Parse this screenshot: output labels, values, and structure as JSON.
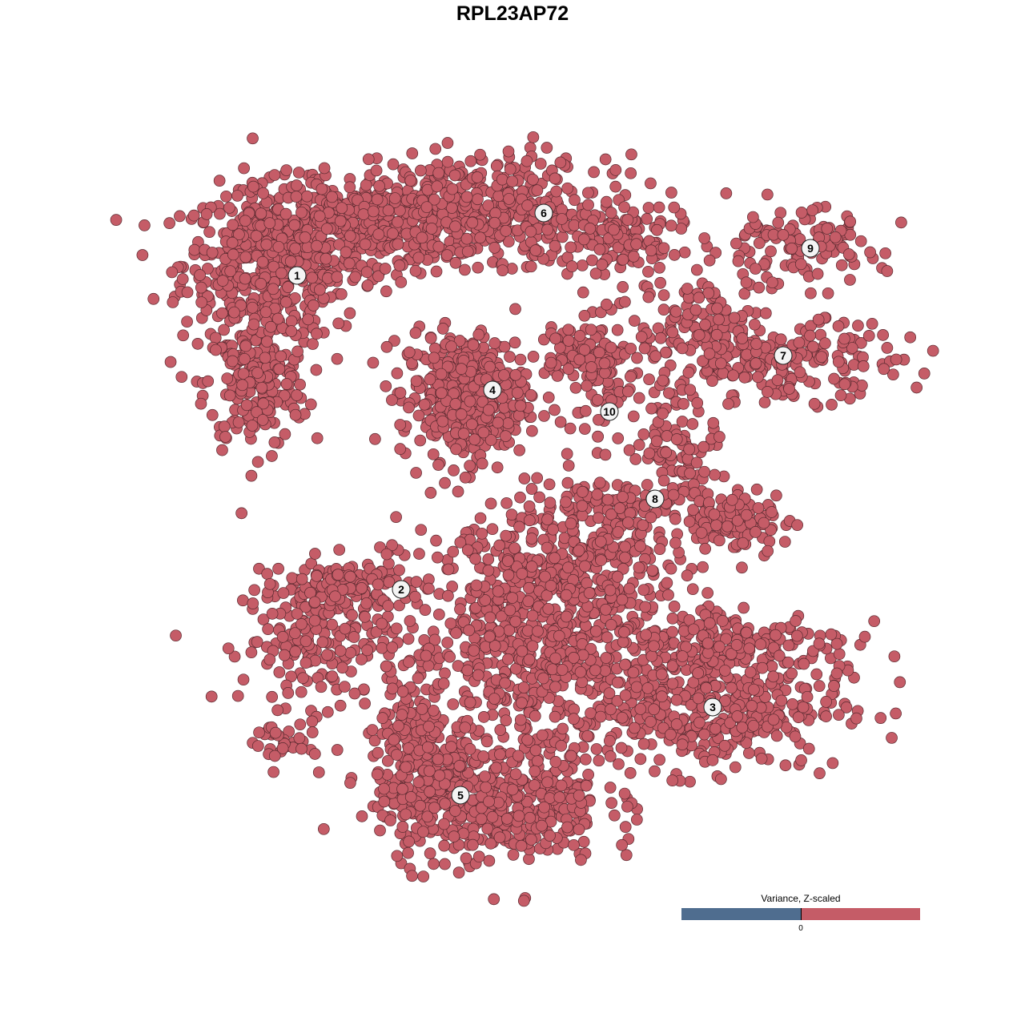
{
  "chart_data": {
    "type": "scatter",
    "title": "RPL23AP72",
    "xlabel": "",
    "ylabel": "",
    "xlim": [
      -44,
      50
    ],
    "ylim": [
      -46,
      46
    ],
    "axes_visible": false,
    "grid": false,
    "point_color": "#c55c67",
    "point_stroke": "#5a2a30",
    "clusters": [
      {
        "label": "1",
        "label_at": [
          -26.9,
          29.6
        ],
        "blobs": [
          [
            -30,
            31,
            7,
            6,
            500
          ],
          [
            -32,
            16,
            4,
            5,
            200
          ],
          [
            -19,
            36,
            8,
            4,
            300
          ]
        ]
      },
      {
        "label": "2",
        "label_at": [
          -13.9,
          -9.6
        ],
        "blobs": [
          [
            -24,
            -16,
            6,
            5,
            200
          ],
          [
            -20,
            -9,
            5,
            2,
            100
          ],
          [
            -29,
            -29,
            3,
            2,
            30
          ]
        ]
      },
      {
        "label": "3",
        "label_at": [
          25,
          -24.3
        ],
        "blobs": [
          [
            25,
            -24,
            10,
            5,
            400
          ],
          [
            28,
            -16,
            9,
            3,
            150
          ]
        ]
      },
      {
        "label": "4",
        "label_at": [
          -2.5,
          15.3
        ],
        "blobs": [
          [
            -6,
            14.5,
            5,
            5,
            400
          ]
        ]
      },
      {
        "label": "5",
        "label_at": [
          -6.5,
          -35.3
        ],
        "blobs": [
          [
            -3,
            -36,
            9,
            5,
            500
          ],
          [
            -12,
            -29,
            3,
            5,
            150
          ]
        ]
      },
      {
        "label": "6",
        "label_at": [
          3.9,
          37.4
        ],
        "blobs": [
          [
            -4,
            38,
            10,
            4,
            400
          ],
          [
            12,
            34,
            6,
            4,
            150
          ]
        ]
      },
      {
        "label": "7",
        "label_at": [
          33.8,
          19.6
        ],
        "blobs": [
          [
            34,
            19,
            9,
            3,
            200
          ],
          [
            24,
            24,
            4,
            3,
            80
          ]
        ]
      },
      {
        "label": "8",
        "label_at": [
          17.8,
          1.7
        ],
        "blobs": [
          [
            21,
            8,
            3,
            5,
            100
          ],
          [
            28,
            -1,
            4,
            2.5,
            100
          ],
          [
            12,
            1,
            5,
            2,
            80
          ]
        ]
      },
      {
        "label": "9",
        "label_at": [
          37.2,
          33
        ],
        "blobs": [
          [
            35,
            33,
            7,
            3,
            120
          ]
        ]
      },
      {
        "label": "10",
        "label_at": [
          12.1,
          12.6
        ],
        "blobs": [
          [
            12,
            17,
            4,
            5,
            100
          ],
          [
            8,
            20,
            4,
            2,
            60
          ]
        ]
      },
      {
        "label": "",
        "label_at": null,
        "blobs": [
          [
            4,
            -16,
            11,
            9,
            700
          ],
          [
            8,
            -6,
            8,
            4,
            200
          ]
        ]
      }
    ],
    "legend": {
      "title": "Variance, Z-scaled",
      "tick": "0",
      "low_color": "#4f6d8f",
      "high_color": "#c55c67",
      "placement": "bottom-right"
    }
  }
}
